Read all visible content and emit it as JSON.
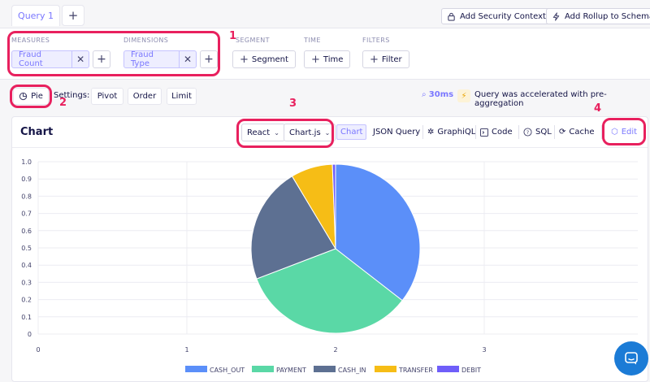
{
  "tabs": {
    "active_label": "Query 1",
    "add_label": "+"
  },
  "toolbar": {
    "security_context_label": "Add Security Context",
    "rollup_label": "Add Rollup to Schema"
  },
  "query": {
    "measures": {
      "label": "MEASURES",
      "items": [
        "Fraud Count"
      ]
    },
    "dimensions": {
      "label": "DIMENSIONS",
      "items": [
        "Fraud Type"
      ]
    },
    "segment": {
      "label": "SEGMENT",
      "button_label": "Segment"
    },
    "time": {
      "label": "TIME",
      "button_label": "Time"
    },
    "filters": {
      "label": "FILTERS",
      "button_label": "Filter"
    }
  },
  "settings": {
    "chart_type": "Pie",
    "label": "Settings:",
    "pivot_label": "Pivot",
    "order_label": "Order",
    "limit_label": "Limit",
    "timing": "30ms",
    "accel_message": "Query was accelerated with pre-aggregation"
  },
  "chart_card": {
    "title": "Chart",
    "framework": "React",
    "library": "Chart.js",
    "tabs": [
      "Chart",
      "JSON Query",
      "GraphiQL",
      "Code",
      "SQL",
      "Cache"
    ],
    "edit_label": "Edit"
  },
  "annotations": [
    "1",
    "2",
    "3",
    "4"
  ],
  "colors": {
    "accent": "#7a77ff",
    "annotation": "#e8205e",
    "chat": "#1b7bd6"
  },
  "chart_data": {
    "type": "pie",
    "title": "",
    "x_ticks": [
      "0",
      "1",
      "2",
      "3"
    ],
    "y_ticks": [
      "1.0",
      "0.9",
      "0.8",
      "0.7",
      "0.6",
      "0.5",
      "0.4",
      "0.3",
      "0.2",
      "0.1",
      "0"
    ],
    "legend_position": "bottom",
    "grid": true,
    "categories": [
      "CASH_OUT",
      "PAYMENT",
      "CASH_IN",
      "TRANSFER",
      "DEBIT"
    ],
    "values": [
      35.5,
      33.7,
      22.2,
      8.0,
      0.6
    ],
    "colors": [
      "#5b8ff9",
      "#5ad8a6",
      "#5d7092",
      "#f6bd16",
      "#6f5ef9"
    ]
  }
}
